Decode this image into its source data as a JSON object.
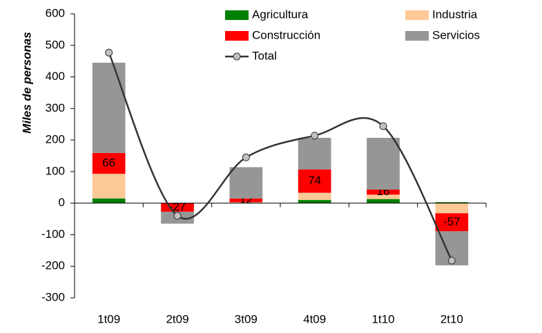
{
  "chart_data": {
    "type": "bar",
    "stacked": true,
    "y_label": "Miles de personas",
    "categories": [
      "1t09",
      "2t09",
      "3t09",
      "4t09",
      "1t10",
      "2t10"
    ],
    "series": [
      {
        "name": "Agricultura",
        "color": "#008000",
        "values": [
          15,
          0,
          1,
          10,
          13,
          3
        ]
      },
      {
        "name": "Industria",
        "color": "#fcc997",
        "values": [
          78,
          0,
          2,
          23,
          14,
          -32
        ]
      },
      {
        "name": "Construcción",
        "color": "#ff0000",
        "values": [
          66,
          -27,
          12,
          74,
          16,
          -57
        ],
        "show_values": true
      },
      {
        "name": "Servicios",
        "color": "#969696",
        "values": [
          286,
          -38,
          99,
          100,
          164,
          -108
        ]
      },
      {
        "name": "Total",
        "type": "line",
        "smooth": true,
        "color": "#333333",
        "values": [
          477,
          -40,
          145,
          214,
          244,
          -182
        ]
      }
    ],
    "ylim": [
      -300,
      600
    ],
    "yticks": [
      -300,
      -200,
      -100,
      0,
      100,
      200,
      300,
      400,
      500,
      600
    ]
  }
}
